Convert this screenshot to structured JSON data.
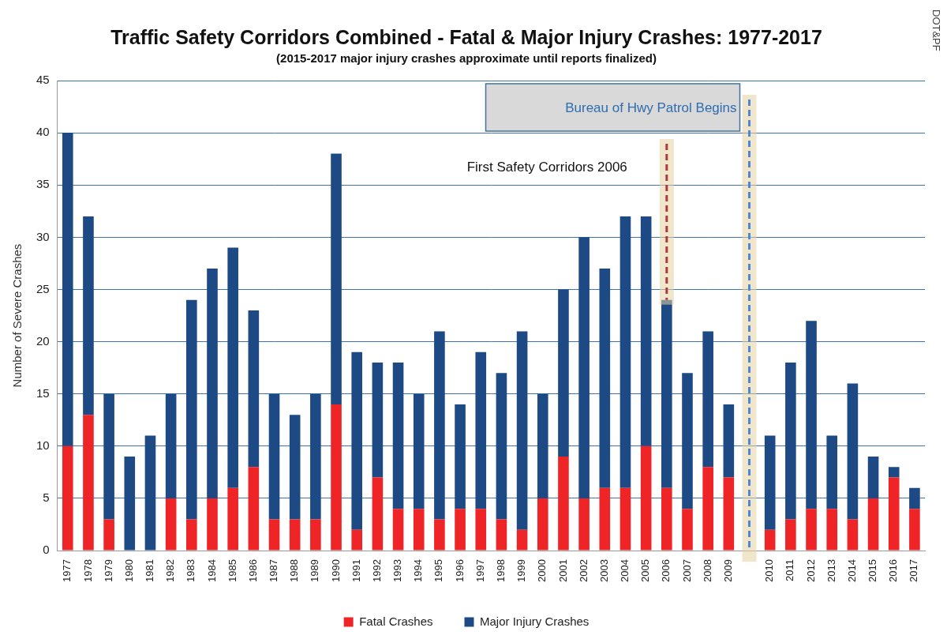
{
  "chart_data": {
    "type": "bar",
    "title": "Traffic Safety Corridors Combined - Fatal & Major Injury Crashes: 1977-2017",
    "subtitle": "(2015-2017 major injury crashes approximate until reports finalized)",
    "y_label": "Number of Severe Crashes",
    "annotations": [
      "Bureau of Hwy Patrol Begins",
      "First Safety Corridors 2006"
    ],
    "source": "DOT&PF",
    "categories": [
      "1977",
      "1978",
      "1979",
      "1980",
      "1981",
      "1982",
      "1983",
      "1984",
      "1985",
      "1986",
      "1987",
      "1988",
      "1989",
      "1990",
      "1991",
      "1992",
      "1993",
      "1994",
      "1995",
      "1996",
      "1997",
      "1998",
      "1999",
      "2000",
      "2001",
      "2002",
      "2003",
      "2004",
      "2005",
      "2006",
      "2007",
      "2008",
      "2009",
      null,
      "2010",
      "2011",
      "2012",
      "2013",
      "2014",
      "2015",
      "2016",
      "2017"
    ],
    "series": [
      {
        "name": "Fatal Crashes",
        "color": "#ee2427",
        "values": [
          10,
          13,
          3,
          0,
          0,
          5,
          3,
          5,
          6,
          8,
          3,
          3,
          3,
          14,
          2,
          7,
          4,
          4,
          3,
          4,
          4,
          3,
          2,
          5,
          9,
          5,
          6,
          6,
          10,
          6,
          4,
          8,
          7,
          null,
          2,
          3,
          4,
          4,
          3,
          5,
          7,
          4
        ]
      },
      {
        "name": "Major Injury Crashes",
        "color": "#1d4a85",
        "values": [
          30,
          19,
          12,
          9,
          11,
          10,
          21,
          22,
          23,
          15,
          12,
          10,
          12,
          24,
          17,
          11,
          14,
          11,
          18,
          10,
          15,
          14,
          19,
          10,
          16,
          25,
          21,
          26,
          22,
          18,
          13,
          13,
          7,
          null,
          9,
          15,
          18,
          7,
          13,
          4,
          1,
          2
        ]
      }
    ],
    "stacked": true,
    "ylim": [
      0,
      45
    ],
    "yticks": [
      0,
      5,
      10,
      15,
      20,
      25,
      30,
      35,
      40,
      45
    ],
    "grid": true,
    "legend": "bottom"
  }
}
